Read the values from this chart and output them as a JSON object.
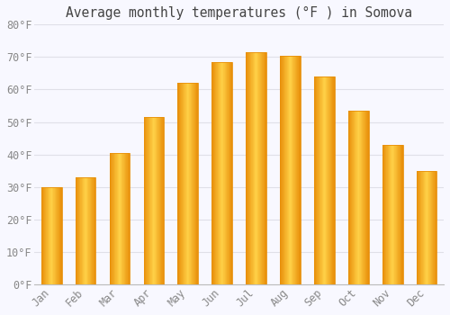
{
  "title": "Average monthly temperatures (°F ) in Somova",
  "months": [
    "Jan",
    "Feb",
    "Mar",
    "Apr",
    "May",
    "Jun",
    "Jul",
    "Aug",
    "Sep",
    "Oct",
    "Nov",
    "Dec"
  ],
  "values": [
    30,
    33,
    40.5,
    51.5,
    62,
    68.5,
    71.5,
    70.5,
    64,
    53.5,
    43,
    35
  ],
  "bar_color_center": "#FFD04A",
  "bar_color_edge": "#E8900A",
  "background_color": "#F8F8FF",
  "plot_bg_color": "#F8F8FF",
  "grid_color": "#E0E0E8",
  "tick_label_color": "#888888",
  "title_color": "#444444",
  "ylim": [
    0,
    80
  ],
  "yticks": [
    0,
    10,
    20,
    30,
    40,
    50,
    60,
    70,
    80
  ],
  "ytick_labels": [
    "0°F",
    "10°F",
    "20°F",
    "30°F",
    "40°F",
    "50°F",
    "60°F",
    "70°F",
    "80°F"
  ],
  "title_fontsize": 10.5,
  "tick_fontsize": 8.5,
  "bar_width": 0.6,
  "figsize": [
    5.0,
    3.5
  ],
  "dpi": 100
}
